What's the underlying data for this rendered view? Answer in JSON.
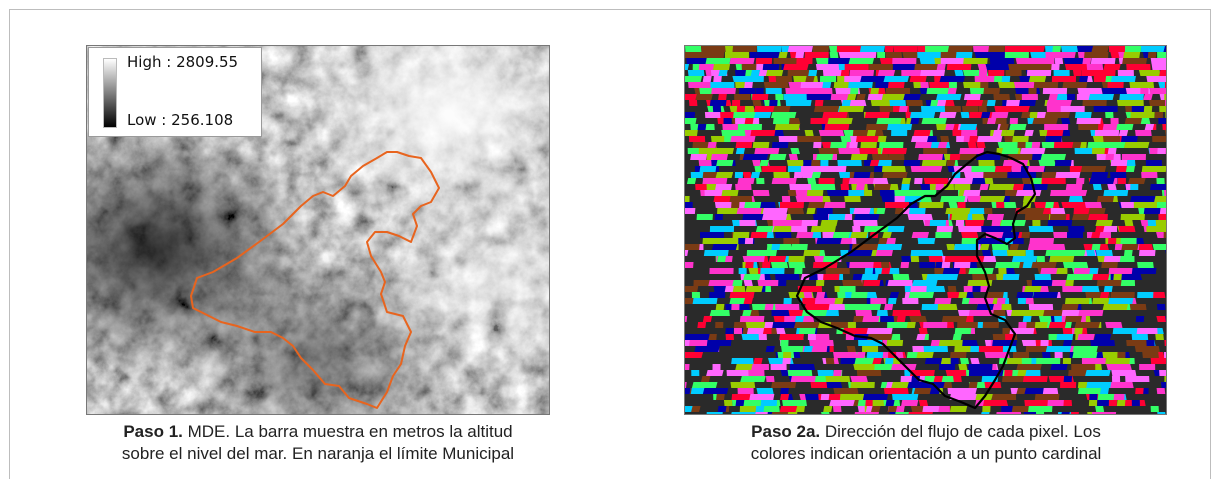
{
  "legend": {
    "high_label": "High : 2809.55",
    "low_label": "Low : 256.108"
  },
  "caption_left": {
    "bold": "Paso 1.",
    "line1": " MDE. La barra muestra en metros la altitud",
    "line2": "sobre el nivel del mar. En naranja el límite Municipal"
  },
  "caption_right": {
    "bold": "Paso 2a.",
    "line1": " Dirección del flujo de cada pixel. Los",
    "line2": "colores indican orientación a un punto cardinal"
  },
  "colors": {
    "boundary_orange": "#e8641e",
    "flow_palette": [
      "#ff33cc",
      "#00ccff",
      "#33ff66",
      "#ff0033",
      "#0000aa",
      "#7a3b14",
      "#ff66ff",
      "#99cc00"
    ]
  }
}
